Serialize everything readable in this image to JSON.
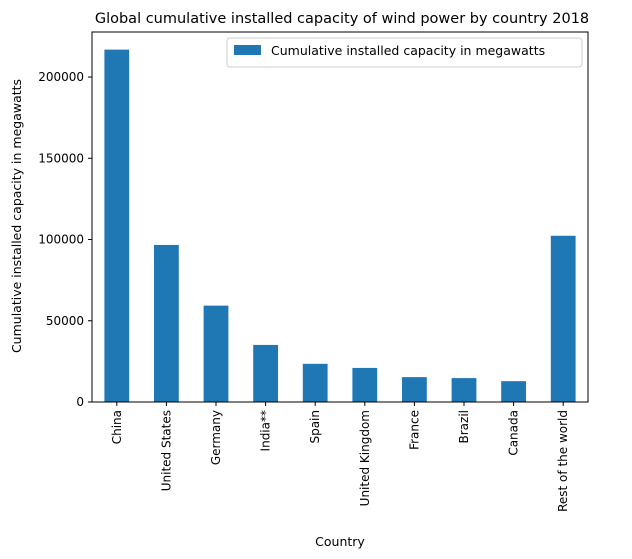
{
  "chart_data": {
    "type": "bar",
    "title": "Global cumulative installed capacity of wind power by country 2018",
    "xlabel": "Country",
    "ylabel": "Cumulative installed capacity in megawatts",
    "categories": [
      "China",
      "United States",
      "Germany",
      "India**",
      "Spain",
      "United Kingdom",
      "France",
      "Brazil",
      "Canada",
      "Rest of the world"
    ],
    "series": [
      {
        "name": "Cumulative installed capacity in megawatts",
        "values": [
          216870,
          96665,
          59311,
          35129,
          23494,
          20970,
          15309,
          14707,
          12816,
          102303
        ],
        "color": "#1f77b4"
      }
    ],
    "ylim": [
      0,
      227714
    ],
    "yticks": [
      0,
      50000,
      100000,
      150000,
      200000
    ],
    "ytick_labels": [
      "0",
      "50000",
      "100000",
      "150000",
      "200000"
    ],
    "grid": false,
    "legend_position": "top-right"
  }
}
